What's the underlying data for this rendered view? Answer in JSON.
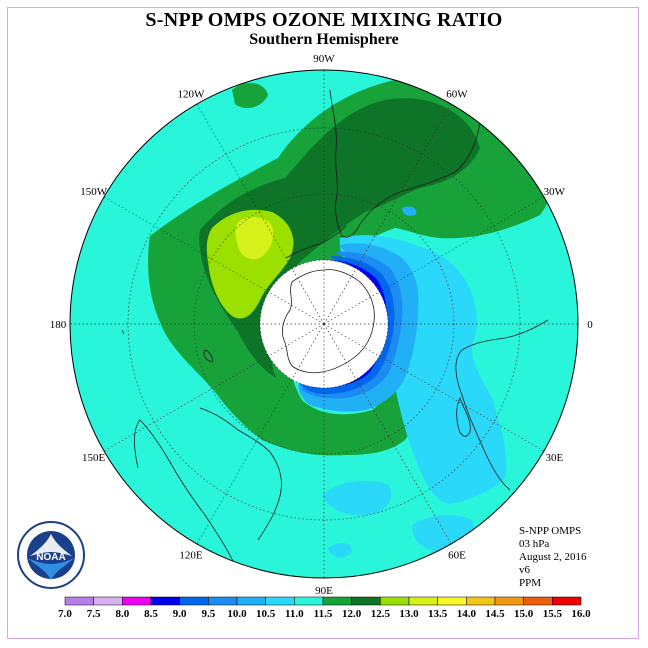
{
  "title": "S-NPP OMPS OZONE MIXING RATIO",
  "subtitle": "Southern Hemisphere",
  "longitude_labels": [
    "90W",
    "60W",
    "30W",
    "0",
    "30E",
    "60E",
    "90E",
    "120E",
    "150E",
    "180",
    "150W",
    "120W"
  ],
  "info": {
    "instrument": "S-NPP OMPS",
    "pressure": "03 hPa",
    "date": "August 2, 2016",
    "version": "v6",
    "units": "PPM"
  },
  "logo_text": "NOAA",
  "logo_ring_text": "NATIONAL OCEANIC AND ATMOSPHERIC ADMINISTRATION · U.S. DEPARTMENT OF COMMERCE",
  "colorbar": {
    "ticks": [
      "7.0",
      "7.5",
      "8.0",
      "8.5",
      "9.0",
      "9.5",
      "10.0",
      "10.5",
      "11.0",
      "11.5",
      "12.0",
      "12.5",
      "13.0",
      "13.5",
      "14.0",
      "14.5",
      "15.0",
      "15.5",
      "16.0"
    ],
    "colors": [
      "#b57ee8",
      "#d6b0f0",
      "#f000f0",
      "#0000f0",
      "#0066ee",
      "#1c8cf2",
      "#21b0f5",
      "#2ad8f9",
      "#29f5da",
      "#18a23a",
      "#0d7428",
      "#9be000",
      "#d6f01a",
      "#f7f72a",
      "#f2c418",
      "#f09a12",
      "#ee5e0c",
      "#ee0000",
      "#8a5436"
    ]
  },
  "colors": {
    "background_field": "#29f5da",
    "polar_night": "#ffffff"
  }
}
